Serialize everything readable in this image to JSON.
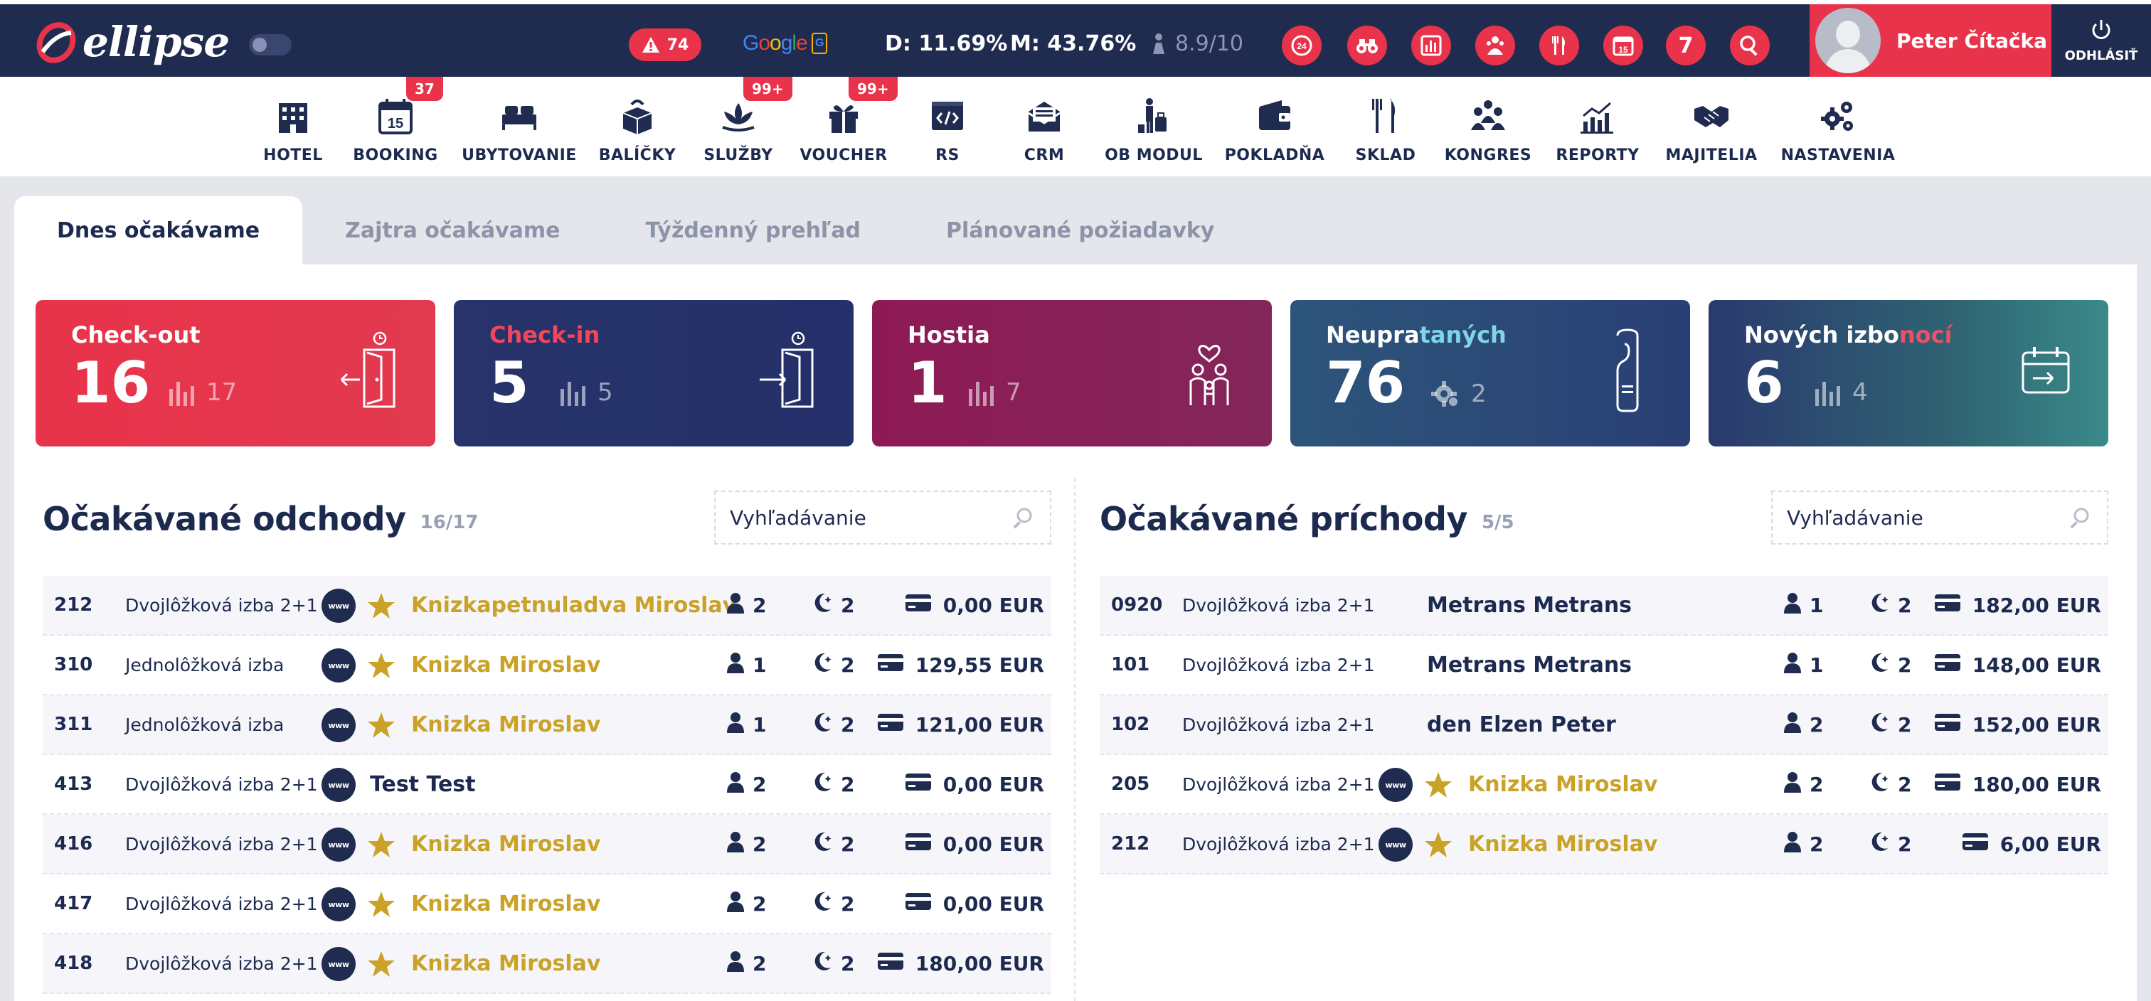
{
  "header": {
    "logo": "ellipse",
    "alert_count": "74",
    "google_label": "Google",
    "stat_d": "D: 11.69%",
    "stat_m": "M: 43.76%",
    "rating": "8.9/10",
    "calendar_count": "7",
    "user_name": "Peter Čítačka",
    "logout_label": "ODHLÁSIŤ"
  },
  "nav": [
    {
      "label": "HOTEL",
      "icon": "hotel-icon"
    },
    {
      "label": "BOOKING",
      "icon": "calendar-icon",
      "badge": "37",
      "day": "15"
    },
    {
      "label": "UBYTOVANIE",
      "icon": "bed-icon"
    },
    {
      "label": "BALÍČKY",
      "icon": "package-icon"
    },
    {
      "label": "SLUŽBY",
      "icon": "lotus-icon",
      "badge": "99+"
    },
    {
      "label": "VOUCHER",
      "icon": "gift-icon",
      "badge": "99+"
    },
    {
      "label": "RS",
      "icon": "code-icon"
    },
    {
      "label": "CRM",
      "icon": "mail-icon"
    },
    {
      "label": "OB MODUL",
      "icon": "luggage-icon"
    },
    {
      "label": "POKLADŇA",
      "icon": "wallet-icon"
    },
    {
      "label": "SKLAD",
      "icon": "cutlery-icon"
    },
    {
      "label": "KONGRES",
      "icon": "group-icon"
    },
    {
      "label": "REPORTY",
      "icon": "chart-icon"
    },
    {
      "label": "MAJITELIA",
      "icon": "handshake-icon"
    },
    {
      "label": "NASTAVENIA",
      "icon": "gears-icon"
    }
  ],
  "tabs": [
    "Dnes očakávame",
    "Zajtra očakávame",
    "Týždenný prehľad",
    "Plánované požiadavky"
  ],
  "cards": [
    {
      "title": "Check-out",
      "value": "16",
      "secondary": "17"
    },
    {
      "title": "Check-in",
      "value": "5",
      "secondary": "5"
    },
    {
      "title": "Hostia",
      "value": "1",
      "secondary": "7"
    },
    {
      "title": "Neupratanych",
      "title_a": "Neupra",
      "title_b": "taných",
      "value": "76",
      "secondary": "2"
    },
    {
      "title": "Nových izbonocí",
      "title_a": "Nových izbo",
      "title_b": "nocí",
      "value": "6",
      "secondary": "4"
    }
  ],
  "departures": {
    "title": "Očakávané odchody",
    "count": "16/17",
    "search_placeholder": "Vyhľadávanie",
    "rows": [
      {
        "room": "212",
        "type": "Dvojlôžková izba 2+1",
        "web": true,
        "vip": true,
        "guest": "Knizkapetnuladva Miroslav",
        "persons": "2",
        "nights": "2",
        "price": "0,00 EUR"
      },
      {
        "room": "310",
        "type": "Jednolôžková izba",
        "web": true,
        "vip": true,
        "guest": "Knizka Miroslav",
        "persons": "1",
        "nights": "2",
        "price": "129,55 EUR"
      },
      {
        "room": "311",
        "type": "Jednolôžková izba",
        "web": true,
        "vip": true,
        "guest": "Knizka Miroslav",
        "persons": "1",
        "nights": "2",
        "price": "121,00 EUR"
      },
      {
        "room": "413",
        "type": "Dvojlôžková izba 2+1",
        "web": true,
        "vip": false,
        "guest": "Test Test",
        "persons": "2",
        "nights": "2",
        "price": "0,00 EUR"
      },
      {
        "room": "416",
        "type": "Dvojlôžková izba 2+1",
        "web": true,
        "vip": true,
        "guest": "Knizka Miroslav",
        "persons": "2",
        "nights": "2",
        "price": "0,00 EUR"
      },
      {
        "room": "417",
        "type": "Dvojlôžková izba 2+1",
        "web": true,
        "vip": true,
        "guest": "Knizka Miroslav",
        "persons": "2",
        "nights": "2",
        "price": "0,00 EUR"
      },
      {
        "room": "418",
        "type": "Dvojlôžková izba 2+1",
        "web": true,
        "vip": true,
        "guest": "Knizka Miroslav",
        "persons": "2",
        "nights": "2",
        "price": "180,00 EUR"
      }
    ]
  },
  "arrivals": {
    "title": "Očakávané príchody",
    "count": "5/5",
    "search_placeholder": "Vyhľadávanie",
    "rows": [
      {
        "room": "0920",
        "type": "Dvojlôžková izba 2+1",
        "web": false,
        "vip": false,
        "guest": "Metrans Metrans",
        "persons": "1",
        "nights": "2",
        "price": "182,00 EUR"
      },
      {
        "room": "101",
        "type": "Dvojlôžková izba 2+1",
        "web": false,
        "vip": false,
        "guest": "Metrans Metrans",
        "persons": "1",
        "nights": "2",
        "price": "148,00 EUR"
      },
      {
        "room": "102",
        "type": "Dvojlôžková izba 2+1",
        "web": false,
        "vip": false,
        "guest": "den Elzen Peter",
        "persons": "2",
        "nights": "2",
        "price": "152,00 EUR"
      },
      {
        "room": "205",
        "type": "Dvojlôžková izba 2+1",
        "web": true,
        "vip": true,
        "guest": "Knizka Miroslav",
        "persons": "2",
        "nights": "2",
        "price": "180,00 EUR"
      },
      {
        "room": "212",
        "type": "Dvojlôžková izba 2+1",
        "web": true,
        "vip": true,
        "guest": "Knizka Miroslav",
        "persons": "2",
        "nights": "2",
        "price": "6,00 EUR"
      }
    ]
  },
  "colors": {
    "navy": "#1f2b4f",
    "red": "#e8334a",
    "gold": "#c9a227",
    "card_checkout": "#e8334a",
    "card_checkin": "#27336a",
    "card_guests": "#8c1e55",
    "card_dirty": "#2d4a7a",
    "card_new": "#2f6f7a"
  }
}
